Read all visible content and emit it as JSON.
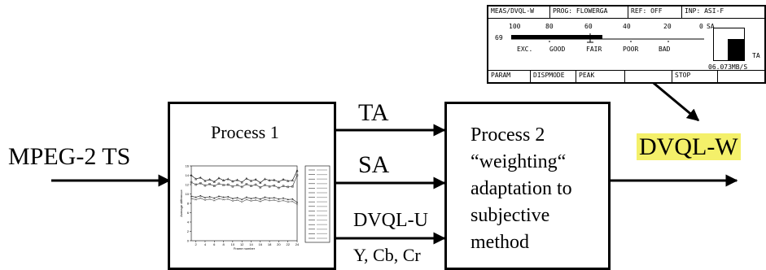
{
  "input_label": "MPEG-2 TS",
  "process1_title": "Process 1",
  "arrows": {
    "ta": "TA",
    "sa": "SA",
    "dvql_u": "DVQL-U",
    "ycbcr": "Y, Cb, Cr"
  },
  "process2_lines": [
    "Process 2",
    "“weighting“",
    "adaptation to",
    "subjective",
    "method"
  ],
  "output_label": "DVQL-W",
  "highlight_color": "#f4f06a",
  "instrument": {
    "header": [
      "MEAS/DVQL-W",
      "PROG: FLOWERGA",
      "REF: OFF",
      "INP: ASI-F"
    ],
    "value_left": "69",
    "scale_numbers": [
      "100",
      "80",
      "60",
      "40",
      "20",
      "0"
    ],
    "scale_words": [
      "EXC.",
      "GOOD",
      "FAIR",
      "POOR",
      "BAD"
    ],
    "side_labels": {
      "sa": "SA",
      "ta": "TA"
    },
    "bitrate": "06.073MB/S",
    "footer": [
      "PARAM",
      "DISPMODE",
      "PEAK",
      "",
      "STOP",
      ""
    ]
  },
  "chart_data": {
    "type": "line",
    "title": "",
    "xlabel": "Frame number",
    "ylabel": "Average difference",
    "x": [
      1,
      2,
      3,
      4,
      5,
      6,
      7,
      8,
      9,
      10,
      11,
      12,
      13,
      14,
      15,
      16,
      17,
      18,
      19,
      20,
      21,
      22,
      23,
      24
    ],
    "ylim": [
      0,
      16
    ],
    "series": [
      {
        "values": [
          14,
          13.2,
          13.5,
          12.8,
          13.1,
          12.6,
          13.4,
          12.9,
          13.2,
          12.7,
          13.0,
          12.5,
          13.3,
          12.8,
          13.1,
          12.4,
          13.2,
          12.9,
          13.0,
          12.6,
          13.1,
          12.8,
          12.9,
          15
        ]
      },
      {
        "values": [
          12.5,
          12.0,
          12.3,
          11.8,
          12.1,
          11.7,
          12.2,
          11.9,
          12.0,
          11.6,
          11.9,
          11.5,
          12.1,
          11.7,
          12.0,
          11.4,
          11.9,
          11.6,
          11.8,
          11.3,
          11.7,
          11.5,
          11.6,
          14
        ]
      },
      {
        "values": [
          9.5,
          9.3,
          9.6,
          9.2,
          9.4,
          9.1,
          9.5,
          9.3,
          9.4,
          9.0,
          9.2,
          8.8,
          9.3,
          9.0,
          9.2,
          8.9,
          9.3,
          9.1,
          9.2,
          8.9,
          9.1,
          8.8,
          8.9,
          8.2
        ]
      },
      {
        "values": [
          9.0,
          8.8,
          9.1,
          8.7,
          8.9,
          8.6,
          9.0,
          8.8,
          8.9,
          8.5,
          8.7,
          8.3,
          8.8,
          8.5,
          8.7,
          8.4,
          8.8,
          8.6,
          8.7,
          8.4,
          8.6,
          8.3,
          8.4,
          7.8
        ]
      }
    ]
  }
}
